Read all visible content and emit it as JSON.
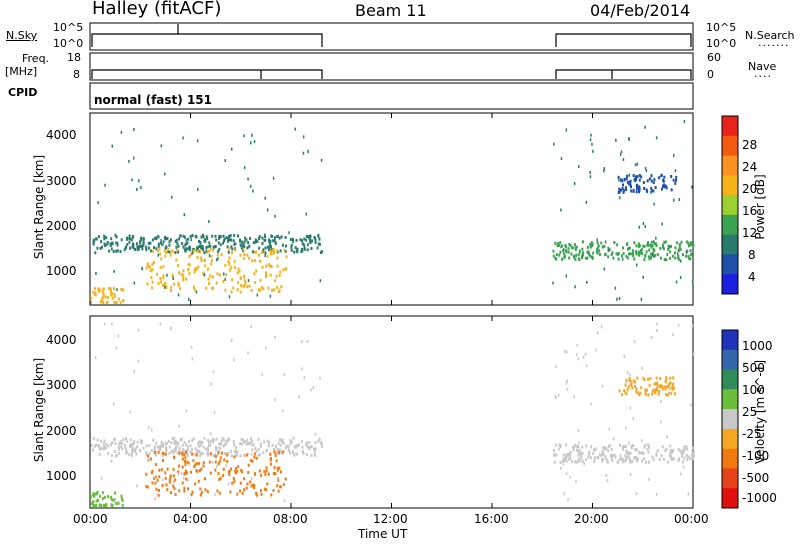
{
  "header": {
    "station": "Halley (fitACF)",
    "beam": "Beam 11",
    "date": "04/Feb/2014"
  },
  "status_panels": {
    "nsky_label": "N.Sky",
    "nsky_ticks": [
      "10^5",
      "10^0"
    ],
    "nsearch_label": "N.Search",
    "nsearch_ticks": [
      "10^5",
      "10^0"
    ],
    "freq_label_top": "Freq.",
    "freq_label_unit": "[MHz]",
    "freq_ticks": [
      "18",
      "8"
    ],
    "nave_label": "Nave",
    "nave_ticks": [
      "60",
      "0"
    ],
    "cpid_label": "CPID",
    "cpid_value": "normal (fast) 151"
  },
  "chart_data": [
    {
      "type": "heatmap",
      "name": "power-panel",
      "ylabel": "Slant Range [km]",
      "ylim": [
        200,
        4500
      ],
      "y_ticks": [
        "4000",
        "3000",
        "2000",
        "1000"
      ],
      "x_ticks": [
        "00:00",
        "04:00",
        "08:00",
        "12:00",
        "16:00",
        "20:00",
        "00:00"
      ],
      "xlim_hours": [
        0,
        24
      ],
      "colorbar_label": "Power [dB]",
      "colorbar_ticks": [
        "28",
        "24",
        "20",
        "16",
        "12",
        "8",
        "4"
      ],
      "colorbar_colors": [
        "#e8231c",
        "#f25a12",
        "#f7931e",
        "#f6b21a",
        "#9ccf31",
        "#3aa351",
        "#2a7a6e",
        "#1e4fa8",
        "#1b1fe0"
      ],
      "data_segments_hours": [
        [
          0,
          9.2
        ],
        [
          18.4,
          24
        ]
      ],
      "features": [
        {
          "t_start": 0.0,
          "t_end": 9.2,
          "range_km": 1600,
          "power_db": 8
        },
        {
          "t_start": 2.2,
          "t_end": 7.8,
          "range_km": 1000,
          "power_db": 20
        },
        {
          "t_start": 0.0,
          "t_end": 1.3,
          "range_km": 400,
          "power_db": 20
        },
        {
          "t_start": 18.4,
          "t_end": 24.0,
          "range_km": 1450,
          "power_db": 12
        },
        {
          "t_start": 21.0,
          "t_end": 23.3,
          "range_km": 2950,
          "power_db": 4
        }
      ]
    },
    {
      "type": "heatmap",
      "name": "velocity-panel",
      "ylabel": "Slant Range [km]",
      "ylim": [
        200,
        4500
      ],
      "y_ticks": [
        "4000",
        "3000",
        "2000",
        "1000"
      ],
      "x_ticks": [
        "00:00",
        "04:00",
        "08:00",
        "12:00",
        "16:00",
        "20:00",
        "00:00"
      ],
      "xlim_hours": [
        0,
        24
      ],
      "colorbar_label": "Velocity [m s^-1]",
      "colorbar_ticks": [
        "1000",
        "500",
        "100",
        "25",
        "-25",
        "-100",
        "-500",
        "-1000"
      ],
      "colorbar_colors": [
        "#2233bb",
        "#3366aa",
        "#2f8c5a",
        "#6abe3c",
        "#c8c8c8",
        "#f5a623",
        "#f07a10",
        "#e8441b",
        "#e01010"
      ],
      "data_segments_hours": [
        [
          0,
          9.2
        ],
        [
          18.4,
          24
        ]
      ],
      "features": [
        {
          "t_start": 0.0,
          "t_end": 9.2,
          "range_km": 1600,
          "velocity_ms": 0
        },
        {
          "t_start": 2.2,
          "t_end": 7.8,
          "range_km": 1000,
          "velocity_ms": -300
        },
        {
          "t_start": 0.0,
          "t_end": 1.3,
          "range_km": 400,
          "velocity_ms": 60
        },
        {
          "t_start": 18.4,
          "t_end": 24.0,
          "range_km": 1450,
          "velocity_ms": 0
        },
        {
          "t_start": 21.0,
          "t_end": 23.3,
          "range_km": 2950,
          "velocity_ms": -60
        }
      ]
    }
  ],
  "xaxis": {
    "label": "Time UT"
  }
}
